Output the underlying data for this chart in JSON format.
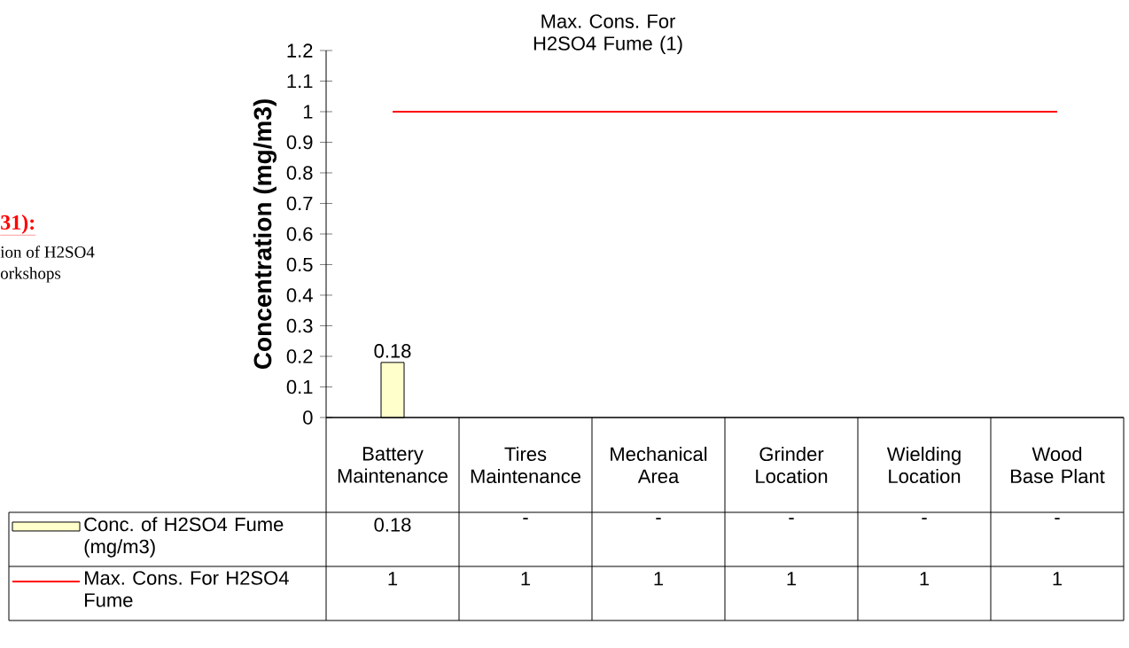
{
  "chart_data": {
    "type": "bar",
    "title": "Max. Cons. For H2SO4 Fume (1)",
    "ylabel": "Concentration (mg/m3)",
    "categories": [
      "Battery Maintenance",
      "Tires Maintenance",
      "Mechanical Area",
      "Grinder Location",
      "Wielding Location",
      "Wood Base Plant"
    ],
    "series": [
      {
        "name": "Conc. of H2SO4 Fume (mg/m3)",
        "color": "#ffffcc",
        "values": [
          0.18,
          null,
          null,
          null,
          null,
          null
        ],
        "value_labels": [
          "0.18",
          "-",
          "-",
          "-",
          "-",
          "-"
        ]
      },
      {
        "name": "Max. Cons. For H2SO4 Fume",
        "type": "line",
        "color": "#ff0000",
        "values": [
          1,
          1,
          1,
          1,
          1,
          1
        ],
        "value_labels": [
          "1",
          "1",
          "1",
          "1",
          "1",
          "1"
        ]
      }
    ],
    "ylim": [
      0,
      1.2
    ],
    "yticks": [
      0,
      0.1,
      0.2,
      0.3,
      0.4,
      0.5,
      0.6,
      0.7,
      0.8,
      0.9,
      1,
      1.1,
      1.2
    ],
    "legend": "bottom",
    "annotations": [
      "31):",
      "ion of H2SO4",
      "orkshops"
    ]
  }
}
